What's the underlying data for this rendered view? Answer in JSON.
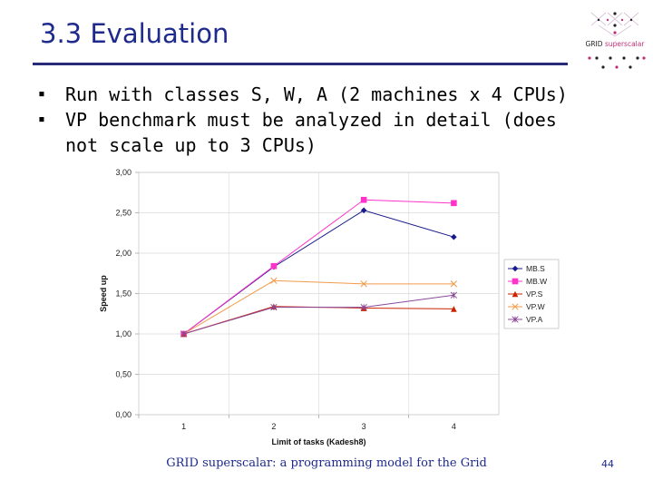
{
  "slide": {
    "title": "3.3 Evaluation",
    "bullets": [
      "Run with classes S, W, A (2 machines x 4 CPUs)",
      "VP benchmark must be analyzed in detail (does not scale up to 3 CPUs)"
    ],
    "footer": "GRID superscalar: a programming model for the Grid",
    "page_number": "44",
    "logo": {
      "text": "GRID",
      "accent_text": "superscalar"
    }
  },
  "colors": {
    "title": "#1e2a8c",
    "rule": "#2a2a7a",
    "mb_s": "#1a1a8a",
    "mb_w": "#ff33cc",
    "vp_s": "#cc2200",
    "vp_w": "#f29a4a",
    "vp_a": "#8a4a9a"
  },
  "chart_data": {
    "type": "line",
    "x": [
      "1",
      "2",
      "3",
      "4"
    ],
    "xlabel": "Limit of tasks (Kadesh8)",
    "ylabel": "Speed up",
    "ylim": [
      0,
      3
    ],
    "yticks": [
      "0,00",
      "0,50",
      "1,00",
      "1,50",
      "2,00",
      "2,50",
      "3,00"
    ],
    "grid": true,
    "legend_position": "right",
    "series": [
      {
        "name": "MB.S",
        "values": [
          1.0,
          1.83,
          2.53,
          2.2
        ],
        "marker": "diamond",
        "color": "#1a1a8a"
      },
      {
        "name": "MB.W",
        "values": [
          1.0,
          1.84,
          2.66,
          2.62
        ],
        "marker": "square",
        "color": "#ff33cc"
      },
      {
        "name": "VP.S",
        "values": [
          1.0,
          1.34,
          1.32,
          1.31
        ],
        "marker": "triangle",
        "color": "#cc2200"
      },
      {
        "name": "VP.W",
        "values": [
          1.0,
          1.66,
          1.62,
          1.62
        ],
        "marker": "x",
        "color": "#f29a4a"
      },
      {
        "name": "VP.A",
        "values": [
          1.0,
          1.33,
          1.33,
          1.48
        ],
        "marker": "star",
        "color": "#8a4a9a"
      }
    ]
  }
}
